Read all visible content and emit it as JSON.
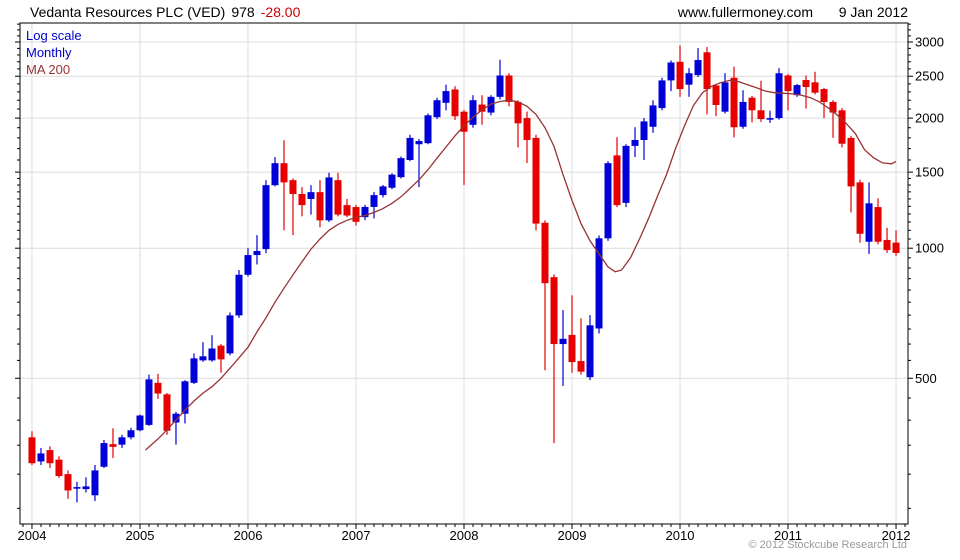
{
  "header": {
    "title": "Vedanta Resources PLC (VED)",
    "price": "978",
    "change": "-28.00",
    "site": "www.fullermoney.com",
    "date": "9 Jan 2012"
  },
  "legend": {
    "scale": "Log scale",
    "interval": "Monthly",
    "ma": "MA 200"
  },
  "footer": {
    "copyright": "© 2012 Stockcube Research Ltd"
  },
  "colors": {
    "up_candle": "#0000d8",
    "down_candle": "#e60000",
    "ma_line": "#993333",
    "grid": "#dcdcdc",
    "frame": "#000000",
    "legend_blue": "#0000cc",
    "change_red": "#cc0000",
    "footer_gray": "#999999"
  },
  "chart_data": {
    "type": "candlestick",
    "title": "Vedanta Resources PLC (VED)",
    "interval": "Monthly",
    "scale": "log",
    "ylim": [
      230,
      3320
    ],
    "xlim": [
      -1.33,
      97.33
    ],
    "y_major_ticks": [
      3000,
      2500,
      2000,
      1500,
      1000,
      500
    ],
    "y_minor_ticks": [
      250,
      300,
      350,
      400,
      450,
      550,
      600,
      650,
      700,
      750,
      800,
      850,
      900,
      950,
      1050,
      1100,
      1150,
      1200,
      1250,
      1300,
      1350,
      1400,
      1450,
      1600,
      1700,
      1800,
      1900,
      2100,
      2200,
      2300,
      2400,
      2600,
      2700,
      2800,
      2900,
      3100,
      3200,
      3300
    ],
    "x_year_ticks": [
      [
        0,
        "2004"
      ],
      [
        12,
        "2005"
      ],
      [
        24,
        "2006"
      ],
      [
        36,
        "2007"
      ],
      [
        48,
        "2008"
      ],
      [
        60,
        "2009"
      ],
      [
        72,
        "2010"
      ],
      [
        84,
        "2011"
      ],
      [
        96,
        "2012"
      ]
    ],
    "candles": [
      [
        "2004-01",
        365,
        377,
        315,
        318
      ],
      [
        "2004-02",
        321,
        345,
        315,
        335
      ],
      [
        "2004-03",
        341,
        348,
        310,
        318
      ],
      [
        "2004-04",
        324,
        330,
        294,
        297
      ],
      [
        "2004-05",
        300,
        306,
        263,
        275
      ],
      [
        "2004-06",
        278,
        288,
        258,
        280
      ],
      [
        "2004-07",
        277,
        295,
        272,
        281
      ],
      [
        "2004-08",
        268,
        315,
        260,
        306
      ],
      [
        "2004-09",
        312,
        360,
        310,
        354
      ],
      [
        "2004-10",
        352,
        383,
        327,
        347
      ],
      [
        "2004-11",
        351,
        370,
        345,
        365
      ],
      [
        "2004-12",
        365,
        384,
        361,
        379
      ],
      [
        "2005-01",
        379,
        412,
        377,
        410
      ],
      [
        "2005-02",
        390,
        510,
        388,
        497
      ],
      [
        "2005-03",
        488,
        512,
        448,
        461
      ],
      [
        "2005-04",
        459,
        462,
        370,
        378
      ],
      [
        "2005-05",
        395,
        418,
        351,
        414
      ],
      [
        "2005-06",
        414,
        495,
        393,
        492
      ],
      [
        "2005-07",
        488,
        571,
        485,
        556
      ],
      [
        "2005-08",
        550,
        606,
        546,
        562
      ],
      [
        "2005-09",
        550,
        629,
        546,
        586
      ],
      [
        "2005-10",
        595,
        600,
        515,
        553
      ],
      [
        "2005-11",
        571,
        710,
        565,
        699
      ],
      [
        "2005-12",
        699,
        890,
        690,
        868
      ],
      [
        "2006-01",
        868,
        1000,
        860,
        964
      ],
      [
        "2006-02",
        964,
        1072,
        917,
        985
      ],
      [
        "2006-03",
        995,
        1437,
        974,
        1399
      ],
      [
        "2006-04",
        1399,
        1625,
        1390,
        1573
      ],
      [
        "2006-05",
        1573,
        1778,
        1100,
        1420
      ],
      [
        "2006-06",
        1437,
        1450,
        1072,
        1335
      ],
      [
        "2006-07",
        1335,
        1385,
        1185,
        1258
      ],
      [
        "2006-08",
        1300,
        1399,
        1196,
        1348
      ],
      [
        "2006-09",
        1348,
        1437,
        1118,
        1160
      ],
      [
        "2006-10",
        1160,
        1495,
        1150,
        1458
      ],
      [
        "2006-11",
        1437,
        1495,
        1185,
        1196
      ],
      [
        "2006-12",
        1258,
        1300,
        1180,
        1190
      ],
      [
        "2007-01",
        1245,
        1260,
        1128,
        1151
      ],
      [
        "2007-02",
        1180,
        1260,
        1161,
        1246
      ],
      [
        "2007-03",
        1246,
        1350,
        1172,
        1327
      ],
      [
        "2007-04",
        1327,
        1400,
        1310,
        1390
      ],
      [
        "2007-05",
        1380,
        1490,
        1370,
        1480
      ],
      [
        "2007-06",
        1460,
        1630,
        1450,
        1616
      ],
      [
        "2007-07",
        1600,
        1830,
        1590,
        1800
      ],
      [
        "2007-08",
        1740,
        1790,
        1385,
        1770
      ],
      [
        "2007-09",
        1750,
        2050,
        1740,
        2030
      ],
      [
        "2007-10",
        2010,
        2230,
        1990,
        2200
      ],
      [
        "2007-11",
        2170,
        2390,
        2085,
        2310
      ],
      [
        "2007-12",
        2330,
        2370,
        1980,
        2020
      ],
      [
        "2008-01",
        2070,
        2090,
        1400,
        1860
      ],
      [
        "2008-02",
        1930,
        2260,
        1900,
        2200
      ],
      [
        "2008-03",
        2150,
        2260,
        1930,
        2070
      ],
      [
        "2008-04",
        2060,
        2260,
        2030,
        2240
      ],
      [
        "2008-05",
        2240,
        2730,
        2210,
        2510
      ],
      [
        "2008-06",
        2510,
        2540,
        2130,
        2180
      ],
      [
        "2008-07",
        2180,
        2200,
        1710,
        1945
      ],
      [
        "2008-08",
        2000,
        2070,
        1575,
        1780
      ],
      [
        "2008-09",
        1800,
        1830,
        1100,
        1140
      ],
      [
        "2008-10",
        1145,
        1160,
        522,
        830
      ],
      [
        "2008-11",
        857,
        870,
        354,
        600
      ],
      [
        "2008-12",
        600,
        719,
        480,
        617
      ],
      [
        "2009-01",
        630,
        778,
        515,
        545
      ],
      [
        "2009-02",
        548,
        688,
        510,
        518
      ],
      [
        "2009-03",
        503,
        700,
        495,
        663
      ],
      [
        "2009-04",
        652,
        1070,
        635,
        1054
      ],
      [
        "2009-05",
        1054,
        1590,
        1040,
        1573
      ],
      [
        "2009-06",
        1640,
        1806,
        1245,
        1258
      ],
      [
        "2009-07",
        1273,
        1740,
        1245,
        1725
      ],
      [
        "2009-08",
        1725,
        1905,
        1625,
        1780
      ],
      [
        "2009-09",
        1780,
        2000,
        1600,
        1965
      ],
      [
        "2009-10",
        1910,
        2200,
        1850,
        2140
      ],
      [
        "2009-11",
        2110,
        2480,
        2085,
        2445
      ],
      [
        "2009-12",
        2445,
        2720,
        2310,
        2690
      ],
      [
        "2010-01",
        2700,
        2945,
        2240,
        2335
      ],
      [
        "2010-02",
        2390,
        2610,
        2240,
        2540
      ],
      [
        "2010-03",
        2515,
        2905,
        2490,
        2725
      ],
      [
        "2010-04",
        2840,
        2920,
        2040,
        2335
      ],
      [
        "2010-05",
        2380,
        2400,
        2020,
        2145
      ],
      [
        "2010-06",
        2070,
        2540,
        2050,
        2420
      ],
      [
        "2010-07",
        2480,
        2630,
        1805,
        1905
      ],
      [
        "2010-08",
        1910,
        2320,
        1890,
        2180
      ],
      [
        "2010-09",
        2230,
        2250,
        1955,
        2085
      ],
      [
        "2010-10",
        2085,
        2440,
        1960,
        1990
      ],
      [
        "2010-11",
        1990,
        2080,
        1950,
        2000
      ],
      [
        "2010-12",
        2000,
        2610,
        1985,
        2540
      ],
      [
        "2011-01",
        2510,
        2530,
        2085,
        2310
      ],
      [
        "2011-02",
        2260,
        2400,
        2240,
        2385
      ],
      [
        "2011-03",
        2450,
        2510,
        2105,
        2360
      ],
      [
        "2011-04",
        2420,
        2560,
        2270,
        2290
      ],
      [
        "2011-05",
        2335,
        2350,
        2000,
        2180
      ],
      [
        "2011-06",
        2180,
        2200,
        1800,
        2060
      ],
      [
        "2011-07",
        2085,
        2110,
        1710,
        1745
      ],
      [
        "2011-08",
        1800,
        1820,
        1210,
        1390
      ],
      [
        "2011-09",
        1420,
        1440,
        1030,
        1080
      ],
      [
        "2011-10",
        1035,
        1420,
        970,
        1270
      ],
      [
        "2011-11",
        1245,
        1305,
        1020,
        1035
      ],
      [
        "2011-12",
        1045,
        1115,
        975,
        990
      ],
      [
        "2012-01",
        1030,
        1100,
        960,
        975
      ]
    ],
    "ma_200": [
      [
        12.6,
        341
      ],
      [
        14,
        362
      ],
      [
        15,
        380
      ],
      [
        16,
        400
      ],
      [
        17,
        422
      ],
      [
        18,
        443
      ],
      [
        19,
        462
      ],
      [
        20,
        478
      ],
      [
        21,
        500
      ],
      [
        22.5,
        542
      ],
      [
        24,
        590
      ],
      [
        25,
        640
      ],
      [
        26,
        690
      ],
      [
        27,
        750
      ],
      [
        28,
        808
      ],
      [
        29,
        868
      ],
      [
        30,
        930
      ],
      [
        31,
        995
      ],
      [
        32,
        1050
      ],
      [
        33,
        1100
      ],
      [
        34,
        1135
      ],
      [
        35,
        1160
      ],
      [
        36,
        1178
      ],
      [
        37,
        1190
      ],
      [
        38,
        1210
      ],
      [
        39,
        1235
      ],
      [
        40,
        1270
      ],
      [
        41,
        1315
      ],
      [
        42,
        1375
      ],
      [
        43,
        1440
      ],
      [
        44,
        1520
      ],
      [
        45,
        1615
      ],
      [
        46,
        1715
      ],
      [
        47,
        1820
      ],
      [
        48,
        1920
      ],
      [
        49,
        2010
      ],
      [
        50,
        2090
      ],
      [
        51,
        2155
      ],
      [
        52,
        2185
      ],
      [
        53,
        2200
      ],
      [
        54,
        2180
      ],
      [
        55,
        2130
      ],
      [
        56,
        2040
      ],
      [
        57,
        1900
      ],
      [
        58,
        1720
      ],
      [
        59,
        1480
      ],
      [
        60,
        1290
      ],
      [
        61,
        1140
      ],
      [
        62,
        1040
      ],
      [
        63,
        970
      ],
      [
        64,
        905
      ],
      [
        64.8,
        882
      ],
      [
        65.5,
        890
      ],
      [
        66.5,
        950
      ],
      [
        67.5,
        1050
      ],
      [
        68.5,
        1170
      ],
      [
        69.5,
        1320
      ],
      [
        70.5,
        1480
      ],
      [
        71.5,
        1700
      ],
      [
        72.5,
        1920
      ],
      [
        73.5,
        2140
      ],
      [
        74.5,
        2290
      ],
      [
        75.5,
        2370
      ],
      [
        76.5,
        2415
      ],
      [
        77.5,
        2445
      ],
      [
        78.5,
        2430
      ],
      [
        79.5,
        2390
      ],
      [
        80.5,
        2350
      ],
      [
        81.5,
        2310
      ],
      [
        82.5,
        2290
      ],
      [
        83.5,
        2283
      ],
      [
        84.5,
        2275
      ],
      [
        85.5,
        2260
      ],
      [
        86.5,
        2230
      ],
      [
        87.5,
        2180
      ],
      [
        88.5,
        2110
      ],
      [
        89.5,
        2030
      ],
      [
        90.5,
        1940
      ],
      [
        91.5,
        1840
      ],
      [
        92.5,
        1690
      ],
      [
        93.5,
        1620
      ],
      [
        94.5,
        1575
      ],
      [
        95.5,
        1568
      ],
      [
        96,
        1587
      ]
    ]
  }
}
